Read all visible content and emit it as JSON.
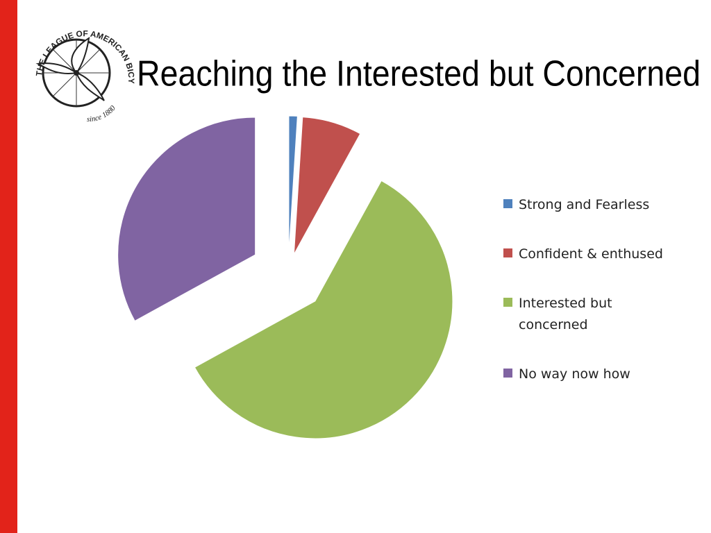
{
  "logo": {
    "name": "THE LEAGUE OF AMERICAN BICYCLISTS",
    "since": "since 1880"
  },
  "chart_data": {
    "type": "pie",
    "title": "Reaching the Interested but Concerned",
    "categories": [
      "Strong and Fearless",
      "Confident & enthused",
      "Interested but concerned",
      "No way now how"
    ],
    "values": [
      1,
      7,
      59,
      33
    ],
    "colors": [
      "#4f81bd",
      "#c0504d",
      "#9bbb59",
      "#8064a2"
    ],
    "exploded": true,
    "legend": "right"
  }
}
